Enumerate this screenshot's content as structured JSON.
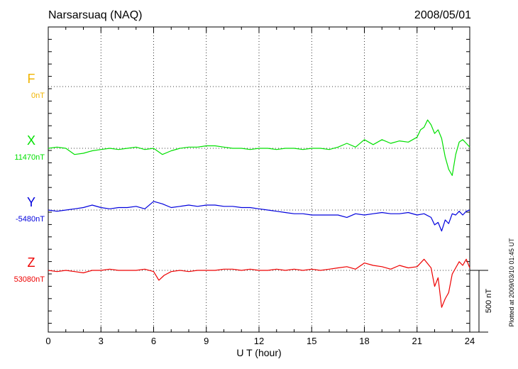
{
  "chart_data": {
    "type": "line",
    "title": "Narsarsuaq (NAQ)",
    "date": "2008/05/01",
    "xlabel": "U T (hour)",
    "xlim": [
      0,
      24
    ],
    "x_ticks": [
      "0",
      "3",
      "6",
      "9",
      "12",
      "15",
      "18",
      "21",
      "24"
    ],
    "scale_label": "500 nT",
    "scale_nT": 500,
    "footnote": "Plotted at 2009/03/10 01:45 UT",
    "grid": true,
    "series": [
      {
        "name": "F",
        "baseline_label": "0nT",
        "color": "#f0b400",
        "x": [],
        "values": []
      },
      {
        "name": "X",
        "baseline_label": "11470nT",
        "color": "#00e000",
        "x": [
          0,
          0.5,
          1,
          1.5,
          2,
          2.5,
          3,
          3.5,
          4,
          4.5,
          5,
          5.5,
          6,
          6.5,
          7,
          7.5,
          8,
          8.5,
          9,
          9.5,
          10,
          10.5,
          11,
          11.5,
          12,
          12.5,
          13,
          13.5,
          14,
          14.5,
          15,
          15.5,
          16,
          16.5,
          17,
          17.5,
          18,
          18.5,
          19,
          19.5,
          20,
          20.5,
          21,
          21.2,
          21.4,
          21.6,
          21.8,
          22,
          22.2,
          22.4,
          22.6,
          22.8,
          23,
          23.2,
          23.4,
          23.6,
          23.8,
          24
        ],
        "values": [
          11470,
          11480,
          11470,
          11420,
          11430,
          11450,
          11460,
          11470,
          11460,
          11470,
          11480,
          11460,
          11470,
          11420,
          11450,
          11470,
          11480,
          11480,
          11490,
          11490,
          11480,
          11470,
          11470,
          11460,
          11470,
          11470,
          11460,
          11470,
          11470,
          11460,
          11470,
          11470,
          11460,
          11480,
          11510,
          11480,
          11540,
          11500,
          11540,
          11510,
          11530,
          11520,
          11560,
          11620,
          11640,
          11700,
          11660,
          11590,
          11620,
          11550,
          11400,
          11300,
          11250,
          11420,
          11520,
          11540,
          11510,
          11480
        ]
      },
      {
        "name": "Y",
        "baseline_label": "-5480nT",
        "color": "#0000dd",
        "x": [
          0,
          0.5,
          1,
          1.5,
          2,
          2.5,
          3,
          3.5,
          4,
          4.5,
          5,
          5.5,
          6,
          6.5,
          7,
          7.5,
          8,
          8.5,
          9,
          9.5,
          10,
          10.5,
          11,
          11.5,
          12,
          12.5,
          13,
          13.5,
          14,
          14.5,
          15,
          15.5,
          16,
          16.5,
          17,
          17.5,
          18,
          18.5,
          19,
          19.5,
          20,
          20.5,
          21,
          21.4,
          21.8,
          22,
          22.2,
          22.4,
          22.6,
          22.8,
          23,
          23.2,
          23.4,
          23.6,
          23.8,
          24
        ],
        "values": [
          -5480,
          -5490,
          -5480,
          -5470,
          -5460,
          -5440,
          -5460,
          -5470,
          -5460,
          -5460,
          -5450,
          -5470,
          -5410,
          -5430,
          -5460,
          -5450,
          -5440,
          -5450,
          -5440,
          -5440,
          -5450,
          -5450,
          -5460,
          -5460,
          -5470,
          -5480,
          -5490,
          -5500,
          -5510,
          -5510,
          -5520,
          -5520,
          -5520,
          -5520,
          -5540,
          -5510,
          -5520,
          -5510,
          -5500,
          -5510,
          -5510,
          -5500,
          -5520,
          -5510,
          -5540,
          -5600,
          -5580,
          -5650,
          -5560,
          -5590,
          -5510,
          -5520,
          -5490,
          -5520,
          -5490,
          -5480
        ]
      },
      {
        "name": "Z",
        "baseline_label": "53080nT",
        "color": "#ee0000",
        "x": [
          0,
          0.5,
          1,
          1.5,
          2,
          2.5,
          3,
          3.5,
          4,
          4.5,
          5,
          5.5,
          6,
          6.3,
          6.6,
          7,
          7.5,
          8,
          8.5,
          9,
          9.5,
          10,
          10.5,
          11,
          11.5,
          12,
          12.5,
          13,
          13.5,
          14,
          14.5,
          15,
          15.5,
          16,
          16.5,
          17,
          17.5,
          18,
          18.5,
          19,
          19.5,
          20,
          20.5,
          21,
          21.4,
          21.8,
          22,
          22.2,
          22.4,
          22.6,
          22.8,
          23,
          23.2,
          23.4,
          23.6,
          23.8,
          24
        ],
        "values": [
          53080,
          53070,
          53080,
          53070,
          53060,
          53080,
          53080,
          53090,
          53080,
          53080,
          53080,
          53090,
          53070,
          53000,
          53040,
          53070,
          53080,
          53070,
          53080,
          53080,
          53080,
          53090,
          53090,
          53080,
          53090,
          53080,
          53080,
          53090,
          53080,
          53090,
          53080,
          53090,
          53080,
          53090,
          53100,
          53110,
          53090,
          53140,
          53120,
          53110,
          53090,
          53120,
          53100,
          53110,
          53170,
          53100,
          52950,
          53020,
          52780,
          52850,
          52900,
          53050,
          53100,
          53150,
          53120,
          53170,
          53100
        ]
      }
    ]
  }
}
